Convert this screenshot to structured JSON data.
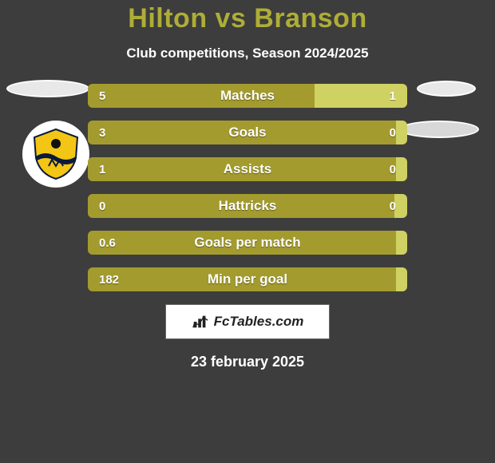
{
  "background_color": "#3d3d3d",
  "title_color": "#aead37",
  "text_color": "#ffffff",
  "title": "Hilton vs Branson",
  "subtitle": "Club competitions, Season 2024/2025",
  "avatars": {
    "left_top_bg": "#e8e8e8",
    "right_top_bg": "#e8e8e8",
    "left_crest_bg": "#ffffff",
    "right_2_bg": "#d8d8d8"
  },
  "bars": [
    {
      "label": "Matches",
      "left_val": "5",
      "right_val": "1",
      "left_pct": 71,
      "right_pct": 29,
      "left_color": "#a39b2e",
      "right_color": "#cfd163"
    },
    {
      "label": "Goals",
      "left_val": "3",
      "right_val": "0",
      "left_pct": 97,
      "right_pct": 3,
      "left_color": "#a39b2e",
      "right_color": "#cfd163"
    },
    {
      "label": "Assists",
      "left_val": "1",
      "right_val": "0",
      "left_pct": 97,
      "right_pct": 3,
      "left_color": "#a39b2e",
      "right_color": "#cfd163"
    },
    {
      "label": "Hattricks",
      "left_val": "0",
      "right_val": "0",
      "left_pct": 96,
      "right_pct": 4,
      "left_color": "#a39b2e",
      "right_color": "#cfd163"
    },
    {
      "label": "Goals per match",
      "left_val": "0.6",
      "right_val": "",
      "left_pct": 100,
      "right_pct": 0,
      "left_color": "#a39b2e",
      "right_color": "#cfd163"
    },
    {
      "label": "Min per goal",
      "left_val": "182",
      "right_val": "",
      "left_pct": 100,
      "right_pct": 0,
      "left_color": "#a39b2e",
      "right_color": "#cfd163"
    }
  ],
  "footer_brand": "FcTables.com",
  "date": "23 february 2025",
  "crest": {
    "shield_fill": "#f3c515",
    "shield_stroke": "#0a1a3a",
    "wave_fill": "#0a1a3a",
    "ball_fill": "#111"
  }
}
